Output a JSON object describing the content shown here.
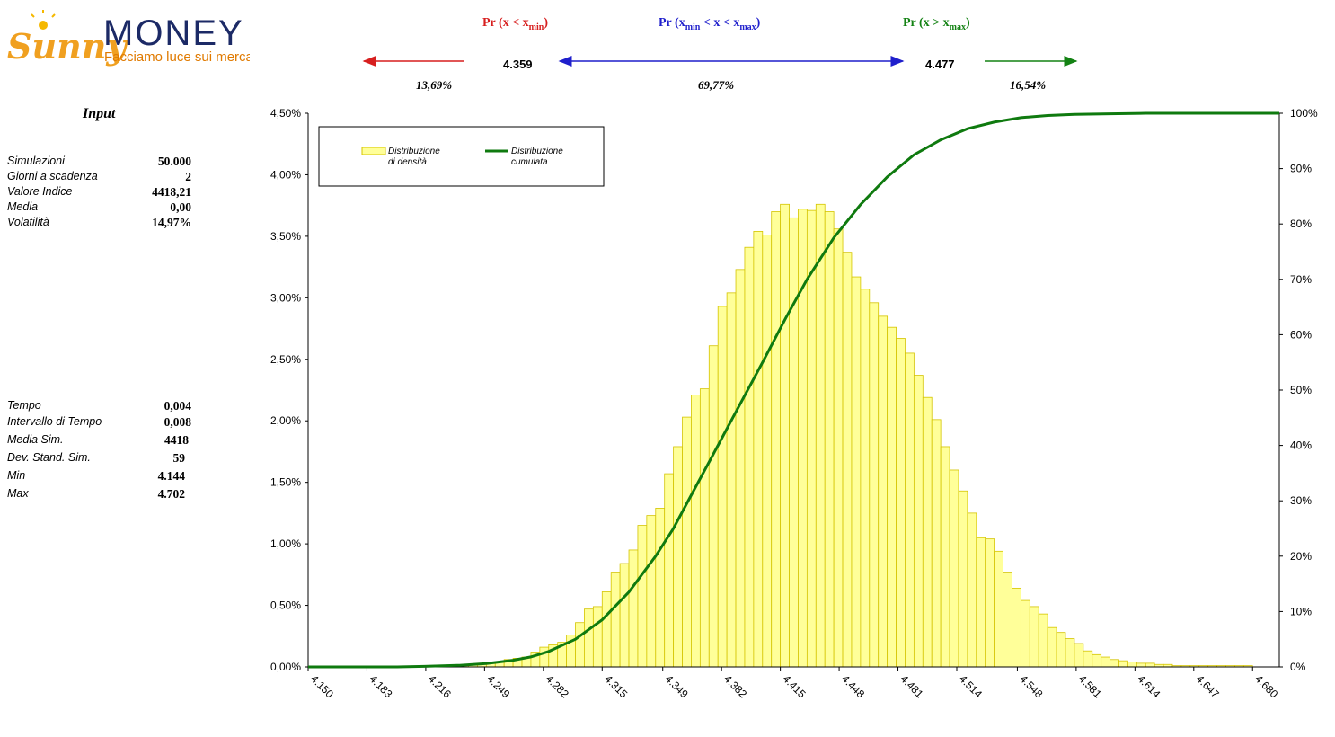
{
  "logo": {
    "brand_a": "Sunny",
    "brand_b": "MONEY",
    "tagline": "Facciamo luce sui mercati"
  },
  "header": {
    "left_title_a": "Pr (",
    "left_title_x": "x",
    "left_title_op": " < ",
    "left_title_xmin": "x",
    "left_title_sub": "min",
    "left_title_end": ")",
    "mid_title_a": "Pr (",
    "mid_title_xmin": "x",
    "mid_title_sub1": "min",
    "mid_title_mid": " < x < ",
    "mid_title_xmax": "x",
    "mid_title_sub2": "max",
    "mid_title_end": ")",
    "right_title_a": "Pr (x > ",
    "right_title_xmax": "x",
    "right_title_sub": "max",
    "right_title_end": ")",
    "xmin_value": "4.359",
    "xmax_value": "4.477",
    "left_pct": "13,69%",
    "mid_pct": "69,77%",
    "right_pct": "16,54%",
    "colors": {
      "left": "#d71f1f",
      "mid": "#1f1fcc",
      "right": "#138213"
    }
  },
  "input": {
    "title": "Input",
    "rows": [
      {
        "label": "Simulazioni",
        "value": "50.000"
      },
      {
        "label": "Giorni a scadenza",
        "value": "2"
      },
      {
        "label": "Valore Indice",
        "value": "4418,21"
      },
      {
        "label": "Media",
        "value": "0,00"
      },
      {
        "label": "Volatilità",
        "value": "14,97%"
      }
    ],
    "rows2": [
      {
        "label": "Tempo",
        "value": "0,004"
      },
      {
        "label": "Intervallo di Tempo",
        "value": "0,008"
      },
      {
        "label": "Media Sim.",
        "value": "4418"
      },
      {
        "label": "Dev. Stand. Sim.",
        "value": "59"
      },
      {
        "label": "Min",
        "value": "4.144"
      },
      {
        "label": "Max",
        "value": "4.702"
      }
    ]
  },
  "chart_data": {
    "type": "bar",
    "x_tick_labels": [
      "4.150",
      "4.183",
      "4.216",
      "4.249",
      "4.282",
      "4.315",
      "4.349",
      "4.382",
      "4.415",
      "4.448",
      "4.481",
      "4.514",
      "4.548",
      "4.581",
      "4.614",
      "4.647",
      "4.680"
    ],
    "x_tick_values": [
      4150,
      4183,
      4216,
      4249,
      4282,
      4315,
      4349,
      4382,
      4415,
      4448,
      4481,
      4514,
      4548,
      4581,
      4614,
      4647,
      4680
    ],
    "xlim": [
      4150,
      4695
    ],
    "bin_width": 5,
    "y_left_ticks": [
      "0,00%",
      "0,50%",
      "1,00%",
      "1,50%",
      "2,00%",
      "2,50%",
      "3,00%",
      "3,50%",
      "4,00%",
      "4,50%"
    ],
    "y_left_lim": [
      0,
      4.5
    ],
    "y_right_ticks": [
      "0%",
      "10%",
      "20%",
      "30%",
      "40%",
      "50%",
      "60%",
      "70%",
      "80%",
      "90%",
      "100%"
    ],
    "y_right_lim": [
      0,
      100
    ],
    "legend": {
      "density_line1": "Distribuzione",
      "density_line2": "di densità",
      "cumulative_line1": "Distribuzione",
      "cumulative_line2": "cumulata"
    },
    "series": [
      {
        "name": "Distribuzione di densità",
        "axis": "left",
        "color": "#ffff99",
        "bin_starts": [
          4150,
          4155,
          4160,
          4165,
          4170,
          4175,
          4180,
          4185,
          4190,
          4195,
          4200,
          4205,
          4210,
          4215,
          4220,
          4225,
          4230,
          4235,
          4240,
          4245,
          4250,
          4255,
          4260,
          4265,
          4270,
          4275,
          4280,
          4285,
          4290,
          4295,
          4300,
          4305,
          4310,
          4315,
          4320,
          4325,
          4330,
          4335,
          4340,
          4345,
          4350,
          4355,
          4360,
          4365,
          4370,
          4375,
          4380,
          4385,
          4390,
          4395,
          4400,
          4405,
          4410,
          4415,
          4420,
          4425,
          4430,
          4435,
          4440,
          4445,
          4450,
          4455,
          4460,
          4465,
          4470,
          4475,
          4480,
          4485,
          4490,
          4495,
          4500,
          4505,
          4510,
          4515,
          4520,
          4525,
          4530,
          4535,
          4540,
          4545,
          4550,
          4555,
          4560,
          4565,
          4570,
          4575,
          4580,
          4585,
          4590,
          4595,
          4600,
          4605,
          4610,
          4615,
          4620,
          4625,
          4630,
          4635,
          4640,
          4645,
          4650,
          4655,
          4660,
          4665,
          4670,
          4675,
          4680,
          4685,
          4690
        ],
        "values": [
          0,
          0,
          0,
          0,
          0,
          0,
          0,
          0,
          0,
          0,
          0,
          0,
          0,
          0,
          0,
          0,
          0.01,
          0.01,
          0.02,
          0.03,
          0.04,
          0.04,
          0.06,
          0.07,
          0.08,
          0.12,
          0.16,
          0.18,
          0.2,
          0.26,
          0.36,
          0.47,
          0.49,
          0.61,
          0.77,
          0.84,
          0.95,
          1.15,
          1.23,
          1.29,
          1.57,
          1.79,
          2.03,
          2.21,
          2.26,
          2.61,
          2.93,
          3.04,
          3.23,
          3.41,
          3.54,
          3.51,
          3.7,
          3.76,
          3.65,
          3.72,
          3.71,
          3.76,
          3.7,
          3.56,
          3.37,
          3.17,
          3.07,
          2.96,
          2.85,
          2.76,
          2.67,
          2.55,
          2.37,
          2.19,
          2.01,
          1.79,
          1.6,
          1.43,
          1.25,
          1.05,
          1.04,
          0.94,
          0.77,
          0.64,
          0.54,
          0.49,
          0.43,
          0.32,
          0.28,
          0.23,
          0.19,
          0.13,
          0.1,
          0.08,
          0.06,
          0.05,
          0.04,
          0.03,
          0.03,
          0.02,
          0.02,
          0.01,
          0.01,
          0.01,
          0.01,
          0.01,
          0.01,
          0.01,
          0.01,
          0.01,
          0,
          0,
          0
        ]
      },
      {
        "name": "Distribuzione cumulata",
        "axis": "right",
        "color": "#0f7a0f",
        "x": [
          4150,
          4200,
          4215,
          4235,
          4250,
          4265,
          4275,
          4285,
          4300,
          4315,
          4330,
          4345,
          4355,
          4365,
          4375,
          4390,
          4405,
          4418,
          4430,
          4445,
          4460,
          4475,
          4490,
          4505,
          4520,
          4535,
          4550,
          4565,
          4580,
          4600,
          4620,
          4650,
          4695
        ],
        "values": [
          0,
          0,
          0.1,
          0.3,
          0.6,
          1.2,
          1.8,
          2.8,
          5.0,
          8.5,
          13.5,
          20.0,
          25.0,
          31.0,
          37.0,
          46.0,
          55.0,
          63.0,
          70.0,
          77.5,
          83.5,
          88.5,
          92.5,
          95.2,
          97.2,
          98.4,
          99.2,
          99.6,
          99.8,
          99.9,
          100,
          100,
          100
        ]
      }
    ]
  }
}
